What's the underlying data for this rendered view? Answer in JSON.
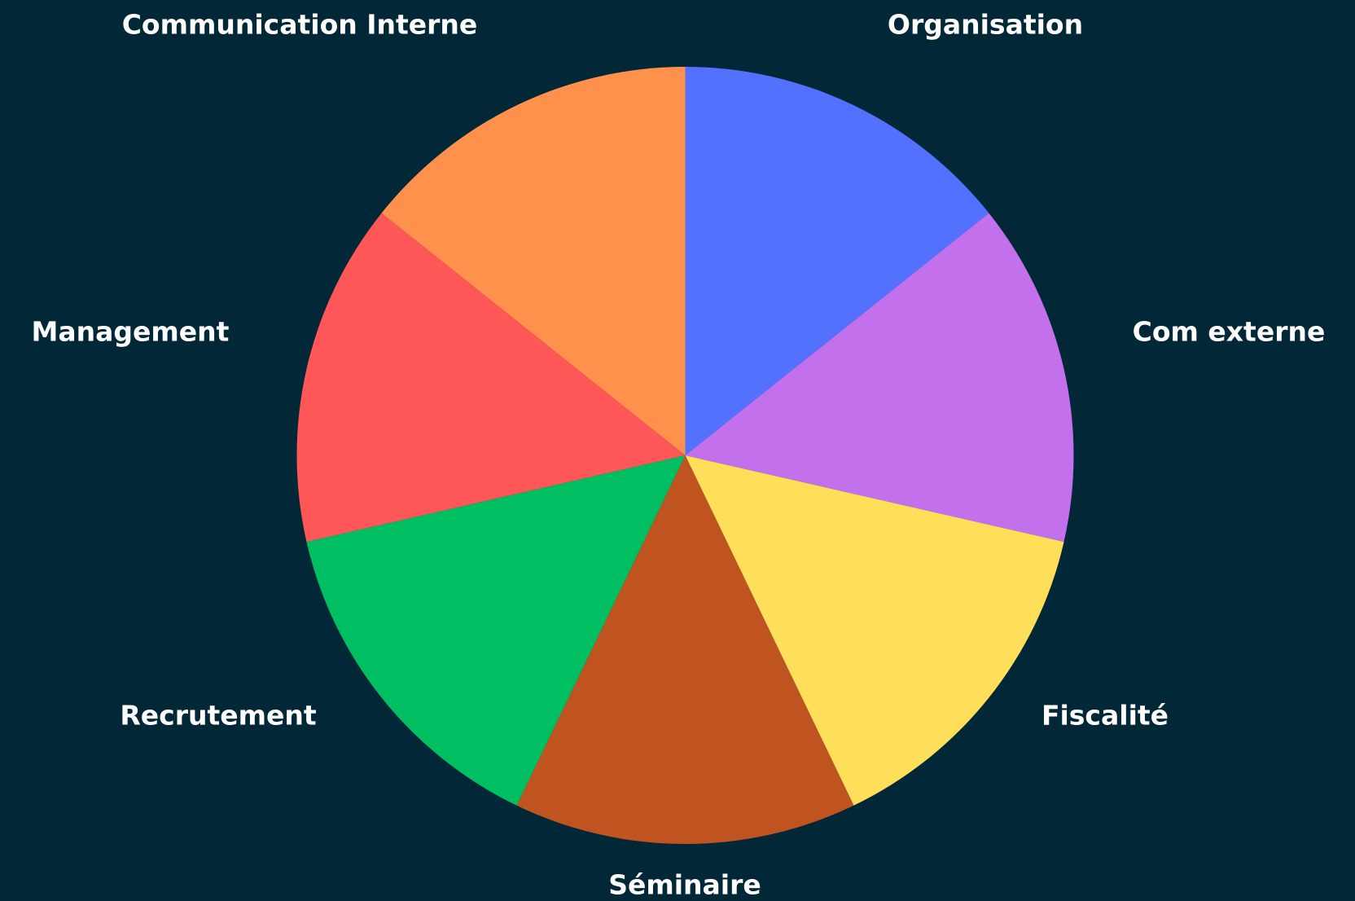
{
  "chart_data": {
    "type": "pie",
    "categories": [
      "Organisation",
      "Com externe",
      "Fiscalité",
      "Séminaire",
      "Recrutement",
      "Management",
      "Communication Interne"
    ],
    "values": [
      1,
      1,
      1,
      1,
      1,
      1,
      1
    ],
    "colors": [
      "#5271ff",
      "#c270ec",
      "#ffde59",
      "#bf5420",
      "#00bf63",
      "#ff5757",
      "#ff914d"
    ]
  }
}
